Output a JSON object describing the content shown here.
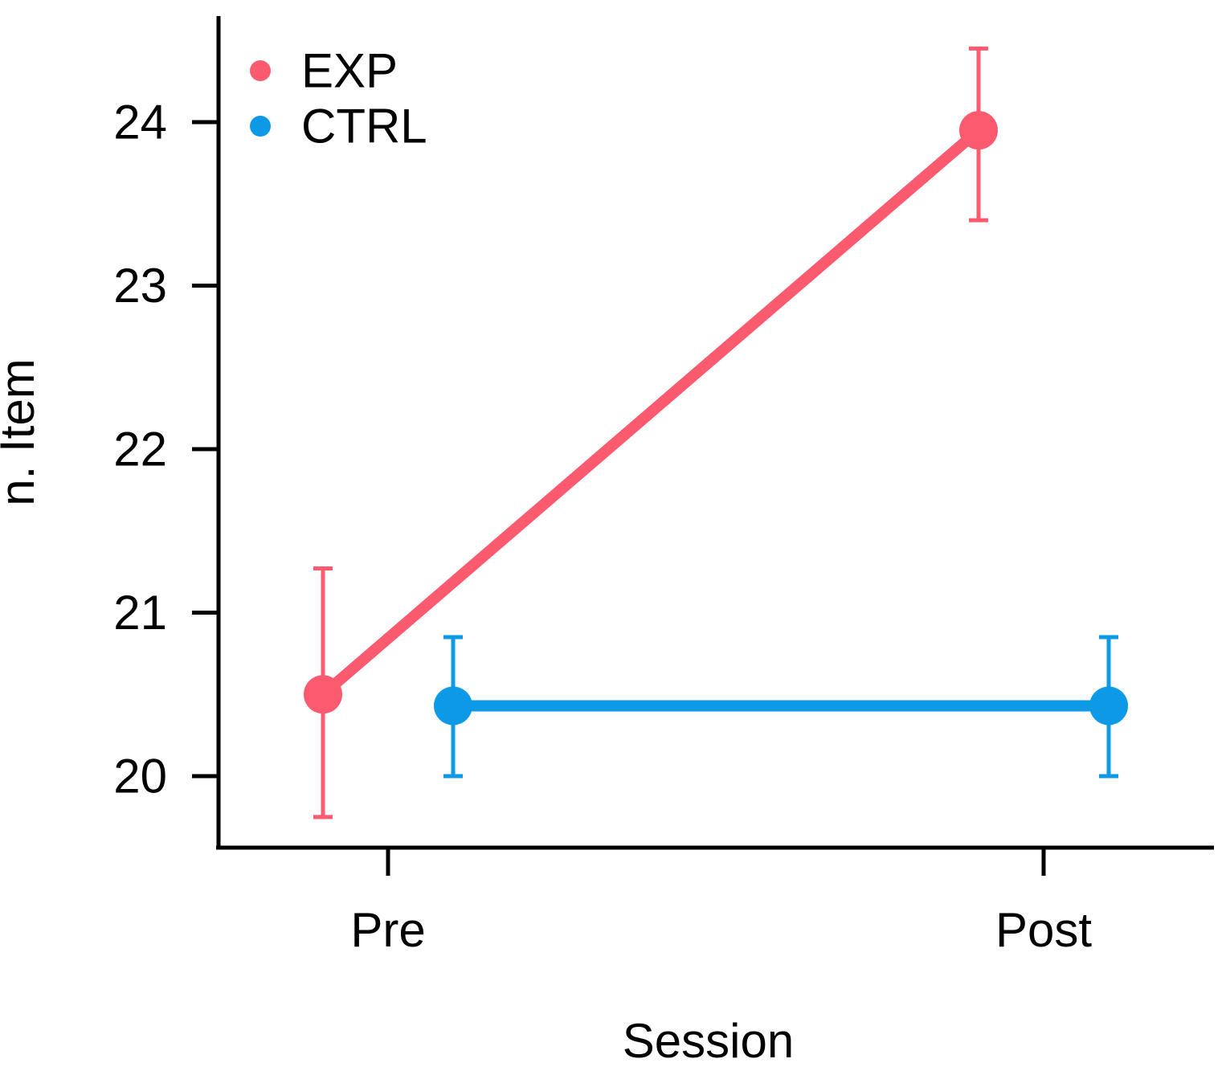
{
  "chart_data": {
    "type": "line",
    "title": "",
    "xlabel": "Session",
    "ylabel": "n. Item",
    "categories": [
      "Pre",
      "Post"
    ],
    "y_ticks": [
      20,
      21,
      22,
      23,
      24
    ],
    "ylim": [
      19.56,
      24.65
    ],
    "grid": false,
    "legend_position": "top-left-inside",
    "legend_entries": [
      "EXP",
      "CTRL"
    ],
    "series": [
      {
        "name": "EXP",
        "color": "#FB5A6F",
        "values": [
          20.5,
          23.95
        ],
        "ci_low": [
          19.75,
          23.4
        ],
        "ci_high": [
          21.27,
          24.45
        ]
      },
      {
        "name": "CTRL",
        "color": "#0D99E6",
        "values": [
          20.43,
          20.43
        ],
        "ci_low": [
          20.0,
          20.0
        ],
        "ci_high": [
          20.85,
          20.85
        ]
      }
    ]
  },
  "colors": {
    "axis": "#000000",
    "text": "#000000",
    "background": "#FFFFFF"
  }
}
